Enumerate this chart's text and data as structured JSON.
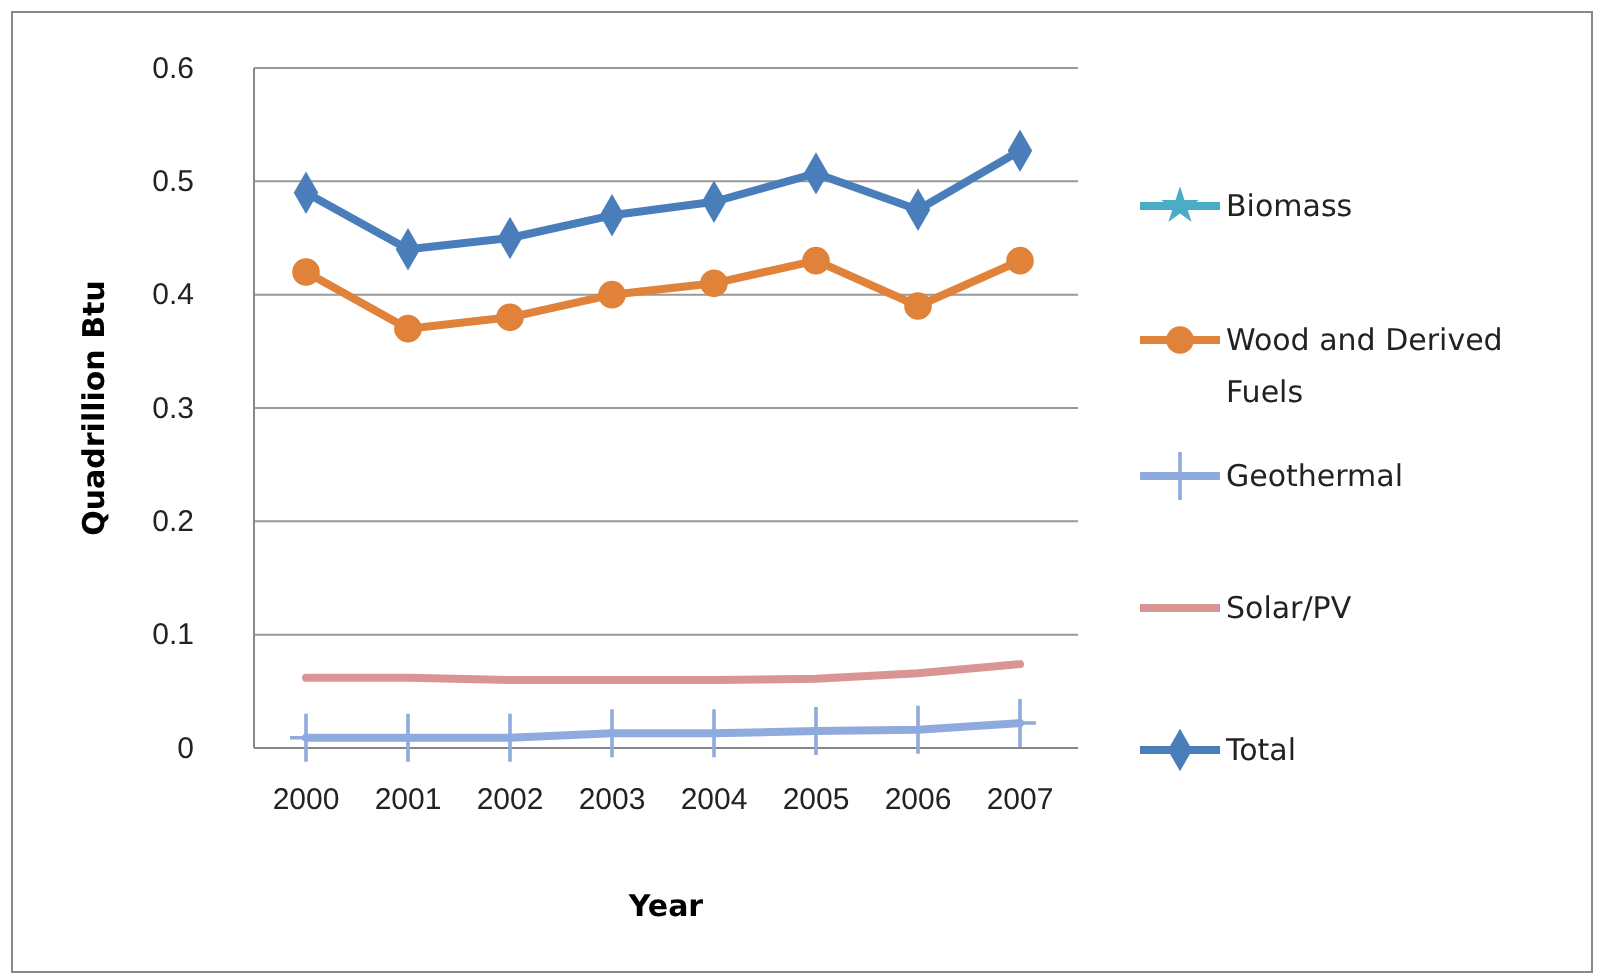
{
  "chart_data": {
    "type": "line",
    "xlabel": "Year",
    "ylabel": "Quadrillion Btu",
    "categories": [
      "2000",
      "2001",
      "2002",
      "2003",
      "2004",
      "2005",
      "2006",
      "2007"
    ],
    "series": [
      {
        "name": "Biomass",
        "color": "#4bacc6",
        "marker": "star",
        "values": [
          null,
          null,
          null,
          null,
          null,
          null,
          null,
          null
        ]
      },
      {
        "name": "Wood and Derived Fuels",
        "color": "#e0823a",
        "marker": "circle",
        "values": [
          0.42,
          0.37,
          0.38,
          0.4,
          0.41,
          0.43,
          0.39,
          0.43
        ]
      },
      {
        "name": "Geothermal",
        "color": "#8faadc",
        "marker": "cross",
        "values": [
          0.009,
          0.009,
          0.009,
          0.013,
          0.013,
          0.015,
          0.016,
          0.022
        ]
      },
      {
        "name": "Solar/PV",
        "color": "#d99594",
        "marker": "none",
        "values": [
          0.062,
          0.062,
          0.06,
          0.06,
          0.06,
          0.061,
          0.066,
          0.074
        ]
      },
      {
        "name": "Total",
        "color": "#4a7ebb",
        "marker": "diamond",
        "values": [
          0.49,
          0.44,
          0.45,
          0.47,
          0.482,
          0.507,
          0.475,
          0.527
        ]
      }
    ],
    "ylim": [
      0,
      0.6
    ],
    "yticks": [
      {
        "value": 0,
        "label": "0"
      },
      0.1,
      0.2,
      0.3,
      0.4,
      0.5,
      0.6
    ],
    "grid": "y",
    "legend": "right"
  }
}
